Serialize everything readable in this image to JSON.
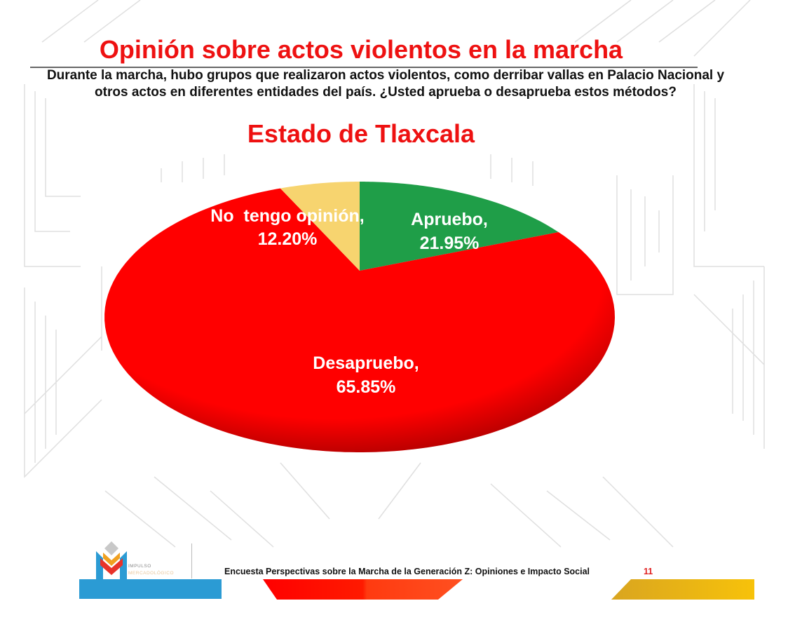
{
  "slide": {
    "title": "Opinión sobre actos violentos en la marcha",
    "question": "Durante la marcha, hubo grupos que realizaron actos violentos, como derribar vallas en Palacio Nacional y otros actos en diferentes entidades del país. ¿Usted aprueba o desaprueba estos métodos?",
    "subtitle": "Estado de Tlaxcala",
    "footer_text": "Encuesta Perspectivas sobre la Marcha de la Generación Z: Opiniones e Impacto Social",
    "page_number": "11",
    "logo": {
      "line1": "IMPULSO",
      "line2": "MERCADOLÓGICO"
    }
  },
  "colors": {
    "title": "#ee1111",
    "aprueba": "#1f9e48",
    "desaprueba": "#ff0000",
    "sin_opinion": "#f7d46f",
    "logo_blue": "#2b9bd4"
  },
  "chart_data": {
    "type": "pie",
    "title": "Opinión sobre actos violentos en la marcha",
    "subtitle": "Estado de Tlaxcala",
    "slices": [
      {
        "label": "Apruebo,",
        "value": 21.95,
        "value_label": "21.95%",
        "color": "#1f9e48"
      },
      {
        "label": "Desapruebo,",
        "value": 65.85,
        "value_label": "65.85%",
        "color": "#ff0000"
      },
      {
        "label": "No  tengo opinión,",
        "value": 12.2,
        "value_label": "12.20%",
        "color": "#f7d46f"
      }
    ],
    "start": "top",
    "direction": "clockwise",
    "legend": "none"
  }
}
